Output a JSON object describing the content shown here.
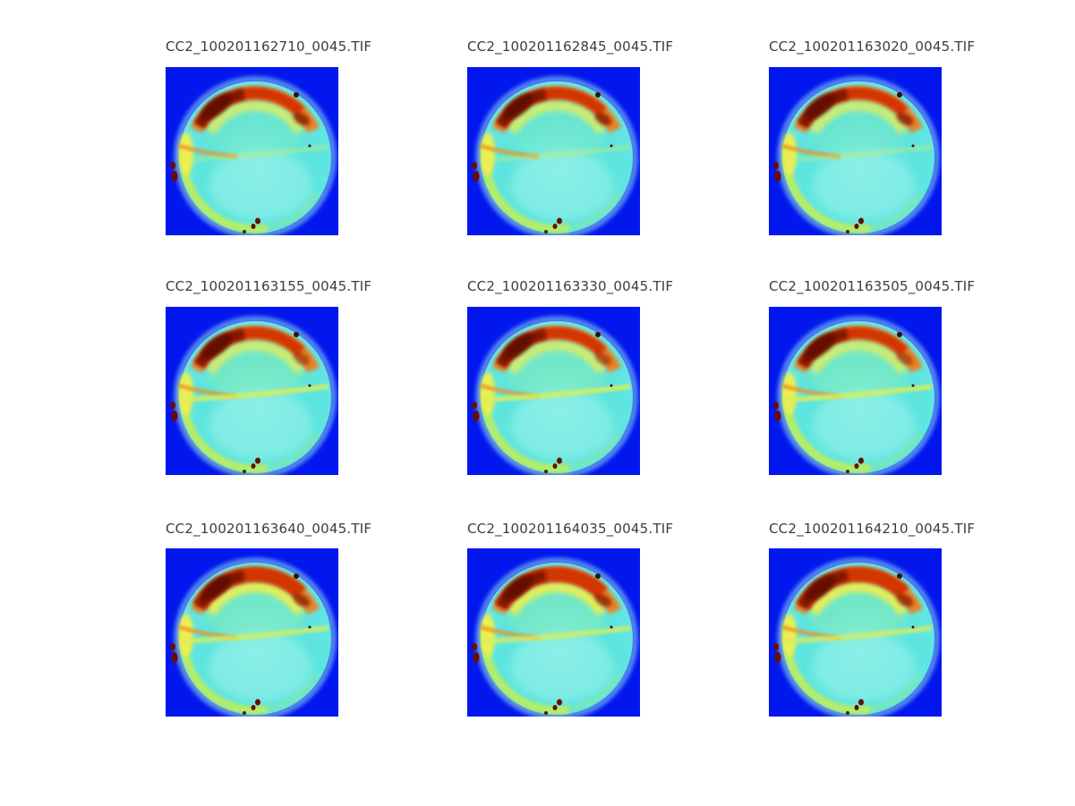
{
  "figure": {
    "background": "#ffffff",
    "grid": {
      "rows": 3,
      "cols": 3
    },
    "tiles": [
      {
        "title": "CC2_100201162710_0045.TIF"
      },
      {
        "title": "CC2_100201162845_0045.TIF"
      },
      {
        "title": "CC2_100201163020_0045.TIF"
      },
      {
        "title": "CC2_100201163155_0045.TIF"
      },
      {
        "title": "CC2_100201163330_0045.TIF"
      },
      {
        "title": "CC2_100201163505_0045.TIF"
      },
      {
        "title": "CC2_100201163640_0045.TIF"
      },
      {
        "title": "CC2_100201164035_0045.TIF"
      },
      {
        "title": "CC2_100201164210_0045.TIF"
      }
    ],
    "colormap": {
      "background_blue": "#0117ee",
      "halo_cyan": "#9ff0f2",
      "disc_cyan": "#5ce4de",
      "disc_center_light": "#96f2e8",
      "rim_yellow_green": "#c4ee54",
      "rim_yellow": "#f2ef4e",
      "band_orange": "#ef7f1c",
      "band_red": "#d13400",
      "band_dark_red": "#7c1200",
      "speck_dark_red": "#6a0c00",
      "title_text": "#3c3c3c"
    }
  },
  "chart_data": {
    "type": "heatmap",
    "layout": "3x3 image montage",
    "colormap": "jet",
    "title": "",
    "subplot_titles": [
      "CC2_100201162710_0045.TIF",
      "CC2_100201162845_0045.TIF",
      "CC2_100201163020_0045.TIF",
      "CC2_100201163155_0045.TIF",
      "CC2_100201163330_0045.TIF",
      "CC2_100201163505_0045.TIF",
      "CC2_100201163640_0045.TIF",
      "CC2_100201164035_0045.TIF",
      "CC2_100201164210_0045.TIF"
    ],
    "axes_visible": false,
    "legend": "none",
    "description": "Nine false-color circular field-of-view images on deep blue background; cyan lower hemisphere, red/dark-red arc across the top, yellow-green rim on lower-left, small dark-red specks on left edge and bottom"
  }
}
